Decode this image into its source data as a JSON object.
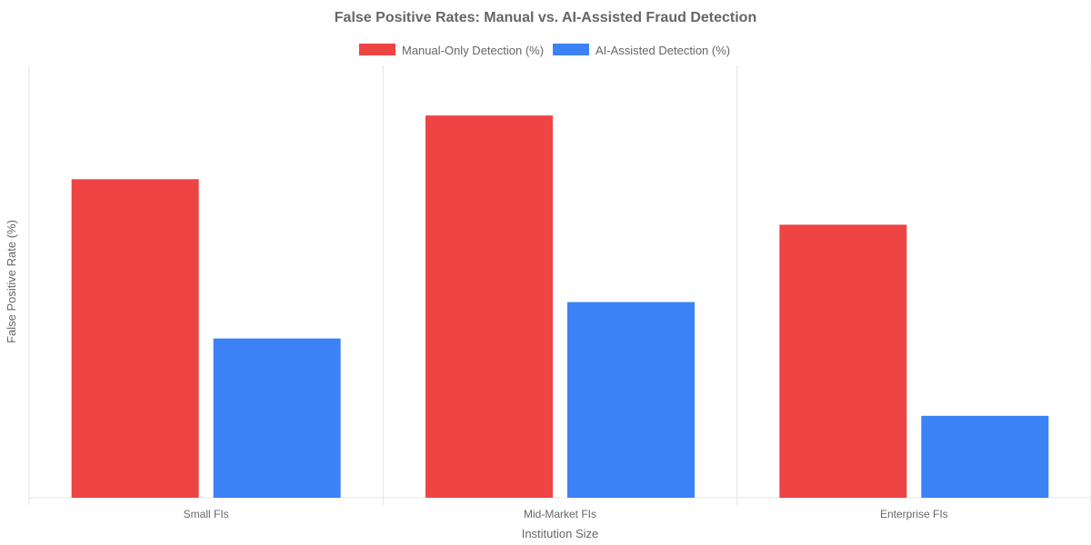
{
  "chart_data": {
    "type": "bar",
    "title": "False Positive Rates: Manual vs. AI-Assisted Fraud Detection",
    "xlabel": "Institution Size",
    "ylabel": "False Positive Rate (%)",
    "categories": [
      "Small FIs",
      "Mid-Market FIs",
      "Enterprise FIs"
    ],
    "series": [
      {
        "name": "Manual-Only Detection (%)",
        "color": "#ef4444",
        "values": [
          35,
          42,
          30
        ]
      },
      {
        "name": "AI-Assisted Detection (%)",
        "color": "#3b82f6",
        "values": [
          17.5,
          21.5,
          9
        ]
      }
    ],
    "ylim": [
      0,
      47.5
    ],
    "grid": "vertical",
    "legend_position": "top"
  }
}
